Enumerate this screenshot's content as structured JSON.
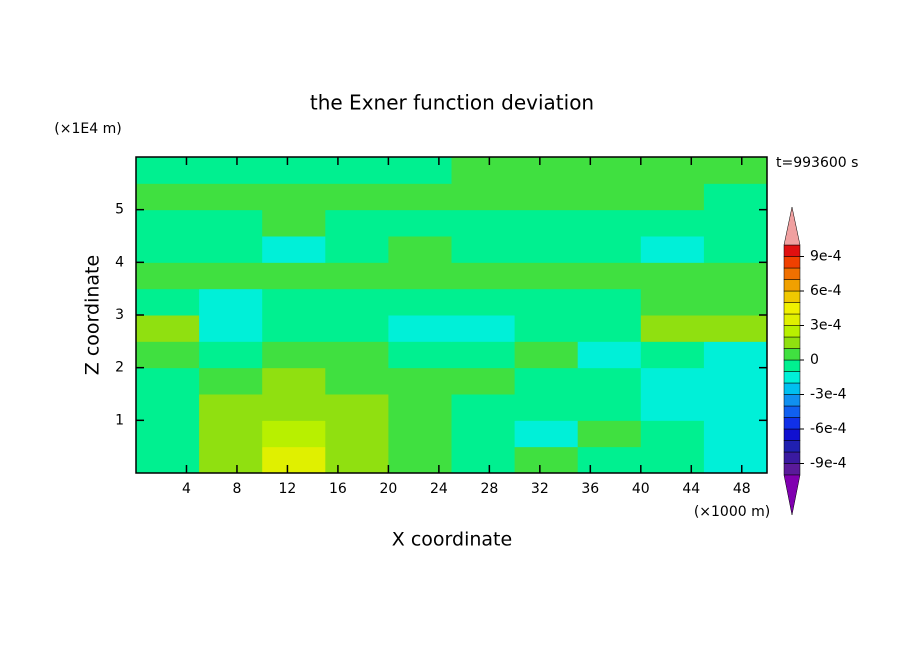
{
  "chart_data": {
    "type": "contour",
    "title": "the Exner function deviation",
    "x_label": "X coordinate",
    "y_label": "Z coordinate",
    "x_unit": "(×1000 m)",
    "y_unit": "(×1E4 m)",
    "time_label": "t=993600 s",
    "xlim": [
      0,
      50
    ],
    "xticks": [
      4,
      8,
      12,
      16,
      20,
      24,
      28,
      32,
      36,
      40,
      44,
      48
    ],
    "ylim": [
      0,
      6
    ],
    "yticks": [
      1,
      2,
      3,
      4,
      5
    ],
    "x": [
      2.5,
      7.5,
      12.5,
      17.5,
      22.5,
      27.5,
      32.5,
      37.5,
      42.5,
      47.5
    ],
    "y": [
      0.25,
      0.75,
      1.25,
      1.75,
      2.25,
      2.75,
      3.25,
      3.75,
      4.25,
      4.75,
      5.25,
      5.75
    ],
    "z": [
      [
        -5e-05,
        0.00015,
        0.00035,
        0.00015,
        5e-05,
        -5e-05,
        5e-05,
        -5e-05,
        -5e-05,
        -0.00015
      ],
      [
        -5e-05,
        0.00015,
        0.00025,
        0.00015,
        5e-05,
        -5e-05,
        -0.00015,
        5e-05,
        -5e-05,
        -0.00015
      ],
      [
        -5e-05,
        0.00015,
        0.00015,
        0.00015,
        5e-05,
        -5e-05,
        -5e-05,
        -5e-05,
        -0.00015,
        -0.00015
      ],
      [
        -5e-05,
        5e-05,
        0.00015,
        5e-05,
        5e-05,
        5e-05,
        -5e-05,
        -5e-05,
        -0.00015,
        -0.00015
      ],
      [
        5e-05,
        -5e-05,
        5e-05,
        5e-05,
        -5e-05,
        -5e-05,
        5e-05,
        -0.00015,
        -5e-05,
        -0.00015
      ],
      [
        0.00015,
        -0.00015,
        -5e-05,
        -5e-05,
        -0.00015,
        -0.00015,
        -5e-05,
        -5e-05,
        0.00015,
        0.00015
      ],
      [
        -5e-05,
        -0.00015,
        -5e-05,
        -5e-05,
        -5e-05,
        -5e-05,
        -5e-05,
        -5e-05,
        5e-05,
        5e-05
      ],
      [
        5e-05,
        5e-05,
        5e-05,
        5e-05,
        5e-05,
        5e-05,
        5e-05,
        5e-05,
        5e-05,
        5e-05
      ],
      [
        -5e-05,
        -5e-05,
        -0.00015,
        -5e-05,
        5e-05,
        -5e-05,
        -5e-05,
        -5e-05,
        -0.00015,
        -5e-05
      ],
      [
        -5e-05,
        -5e-05,
        5e-05,
        -5e-05,
        -5e-05,
        -5e-05,
        -5e-05,
        -5e-05,
        -5e-05,
        -5e-05
      ],
      [
        5e-05,
        5e-05,
        5e-05,
        5e-05,
        5e-05,
        5e-05,
        5e-05,
        5e-05,
        5e-05,
        -5e-05
      ],
      [
        -5e-05,
        -5e-05,
        -5e-05,
        -5e-05,
        -5e-05,
        5e-05,
        5e-05,
        5e-05,
        5e-05,
        5e-05
      ]
    ],
    "levels": [
      -0.001,
      -0.0009,
      -0.0008,
      -0.0007,
      -0.0006,
      -0.0005,
      -0.0004,
      -0.0003,
      -0.0002,
      -0.0001,
      0,
      0.0001,
      0.0002,
      0.0003,
      0.0004,
      0.0005,
      0.0006,
      0.0007,
      0.0008,
      0.0009,
      0.001
    ],
    "colors": [
      "#5a1a9a",
      "#3a1aa0",
      "#2020b0",
      "#1010d0",
      "#1030e8",
      "#1060f0",
      "#1090f0",
      "#00c0f0",
      "#00f0d8",
      "#00f090",
      "#40e040",
      "#90e010",
      "#b8f000",
      "#e0f000",
      "#f0f000",
      "#f0c800",
      "#f0a000",
      "#f07000",
      "#f04000",
      "#e01010"
    ],
    "extend_colors": [
      "#8000b0",
      "#f0a0a0"
    ],
    "cticks": [
      {
        "value": -0.0009,
        "label": "-9e-4"
      },
      {
        "value": -0.0006,
        "label": "-6e-4"
      },
      {
        "value": -0.0003,
        "label": "-3e-4"
      },
      0,
      {
        "value": 0.0003,
        "label": "3e-4"
      },
      {
        "value": 0.0006,
        "label": "6e-4"
      },
      {
        "value": 0.0009,
        "label": "9e-4"
      }
    ]
  }
}
